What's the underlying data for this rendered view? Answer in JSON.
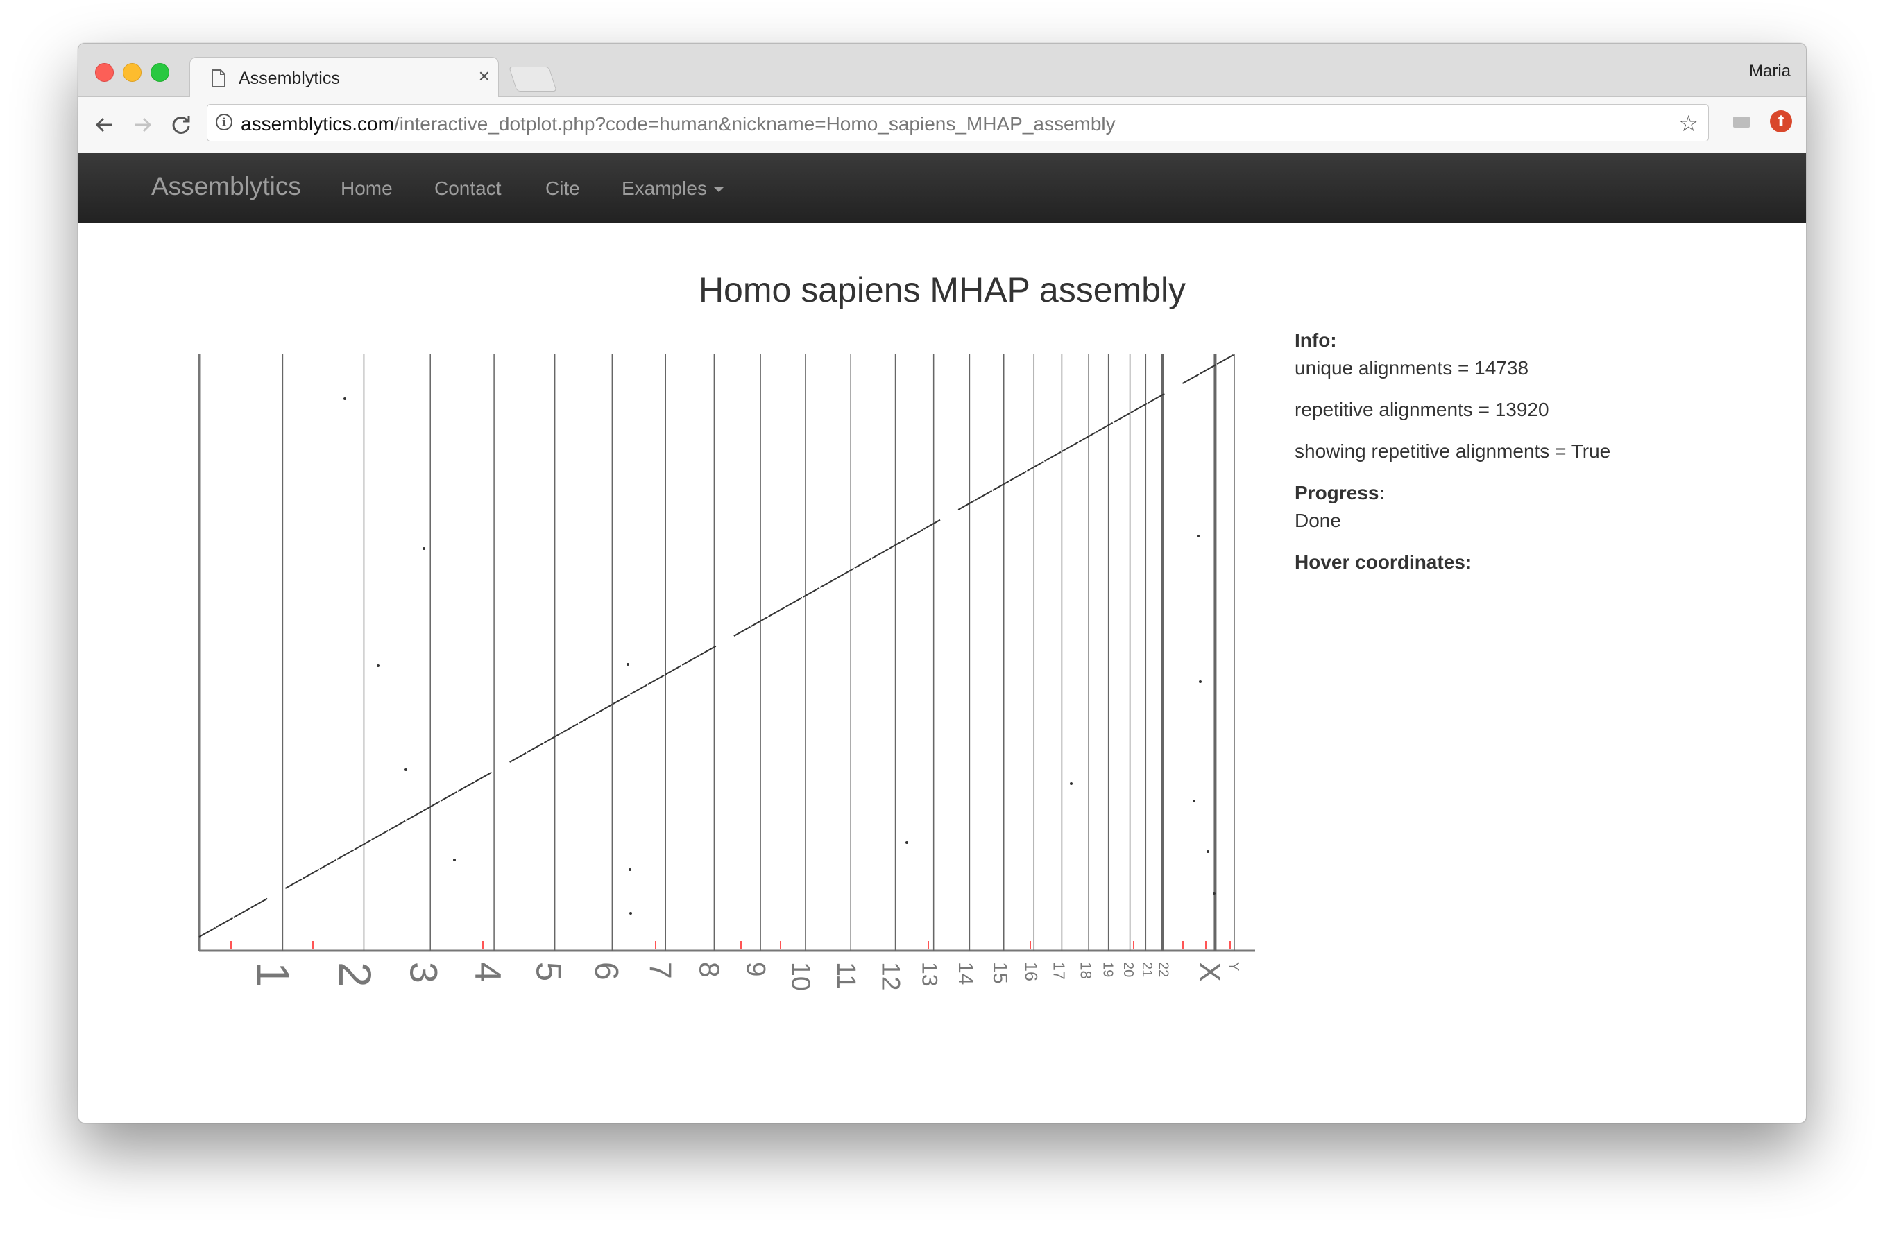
{
  "browser": {
    "tab_title": "Assemblytics",
    "tab_close": "×",
    "profile_name": "Maria",
    "url_host": "assemblytics.com",
    "url_path": "/interactive_dotplot.php?code=human&nickname=Homo_sapiens_MHAP_assembly"
  },
  "navbar": {
    "brand": "Assemblytics",
    "items": [
      {
        "label": "Home"
      },
      {
        "label": "Contact"
      },
      {
        "label": "Cite"
      },
      {
        "label": "Examples"
      }
    ]
  },
  "page": {
    "title": "Homo sapiens MHAP assembly"
  },
  "info_panel": {
    "info_label": "Info:",
    "unique_alignments": "unique alignments = 14738",
    "repetitive_alignments": "repetitive alignments = 13920",
    "showing_repetitive": "showing repetitive alignments = True",
    "progress_label": "Progress:",
    "progress_value": "Done",
    "hover_label": "Hover coordinates:"
  },
  "colors": {
    "navbar_bg": "#222222",
    "navbar_text": "#9d9d9d",
    "dot_color": "#333333",
    "repetitive_color": "#ff5555",
    "chrom_label_color": "#777777"
  },
  "chart_data": {
    "type": "scatter",
    "title": "Homo sapiens MHAP assembly",
    "xlabel": "",
    "ylabel": "",
    "chromosomes": [
      "1",
      "2",
      "3",
      "4",
      "5",
      "6",
      "7",
      "8",
      "9",
      "10",
      "11",
      "12",
      "13",
      "14",
      "15",
      "16",
      "17",
      "18",
      "19",
      "20",
      "21",
      "22",
      "X",
      "Y"
    ],
    "chromosome_lengths_mb": [
      249,
      242,
      198,
      190,
      181,
      171,
      159,
      145,
      138,
      134,
      135,
      133,
      114,
      107,
      102,
      90,
      83,
      80,
      59,
      64,
      47,
      51,
      156,
      57
    ],
    "diagonal": {
      "x": [
        0,
        3095
      ],
      "y": [
        0,
        1
      ]
    },
    "grid": true
  }
}
